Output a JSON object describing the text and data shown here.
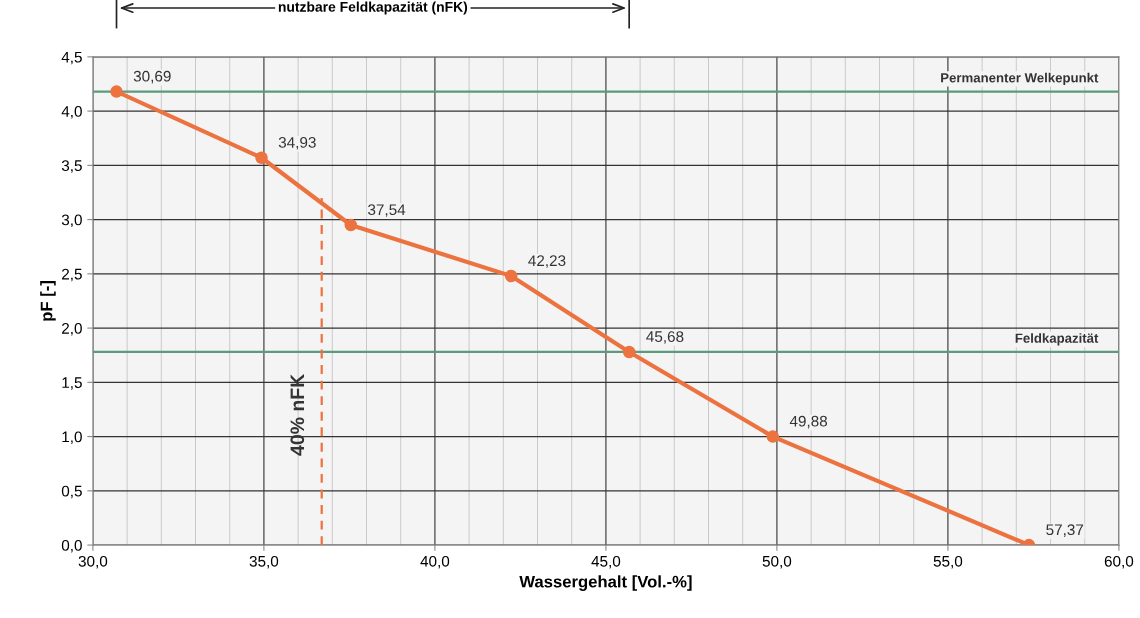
{
  "chart_data": {
    "type": "line",
    "xlabel": "Wassergehalt [Vol.-%]",
    "ylabel": "pF [-]",
    "xlim": [
      30,
      60
    ],
    "xticks": [
      {
        "value": 30,
        "label": "30,0"
      },
      {
        "value": 35,
        "label": "35,0"
      },
      {
        "value": 40,
        "label": "40,0"
      },
      {
        "value": 45,
        "label": "45,0"
      },
      {
        "value": 50,
        "label": "50,0"
      },
      {
        "value": 55,
        "label": "55,0"
      },
      {
        "value": 60,
        "label": "60,0"
      }
    ],
    "ylim": [
      0,
      4.5
    ],
    "yticks": [
      {
        "value": 0,
        "label": "0,0"
      },
      {
        "value": 0.5,
        "label": "0,5"
      },
      {
        "value": 1,
        "label": "1,0"
      },
      {
        "value": 1.5,
        "label": "1,5"
      },
      {
        "value": 2,
        "label": "2,0"
      },
      {
        "value": 2.5,
        "label": "2,5"
      },
      {
        "value": 3,
        "label": "3,0"
      },
      {
        "value": 3.5,
        "label": "3,5"
      },
      {
        "value": 4,
        "label": "4,0"
      },
      {
        "value": 4.5,
        "label": "4,5"
      }
    ],
    "grid": true,
    "legend": false,
    "marker": "circle",
    "line_style": "solid",
    "series": [
      {
        "color": "#ec7340",
        "x": [
          30.69,
          34.93,
          37.54,
          42.23,
          45.68,
          49.88,
          57.37
        ],
        "values": [
          4.18,
          3.57,
          2.95,
          2.48,
          1.78,
          1.0,
          0.0
        ]
      },
      {
        "color": "#ec7340",
        "x": [
          36.69,
          36.69
        ],
        "values": [
          0,
          3.2
        ],
        "marker": "none",
        "line_style": "dashed"
      }
    ],
    "ref_lines": [
      {
        "axis": "y",
        "value": 4.18,
        "label": "Permanenter Welkepunkt",
        "color": "#5b9a7c"
      },
      {
        "axis": "y",
        "value": 1.78,
        "label": "Feldkapazität",
        "color": "#5b9a7c"
      }
    ],
    "annotations": [
      {
        "text": "30,69",
        "x": 30.69,
        "y": 4.18
      },
      {
        "text": "34,93",
        "x": 34.93,
        "y": 3.57
      },
      {
        "text": "37,54",
        "x": 37.54,
        "y": 2.95
      },
      {
        "text": "42,23",
        "x": 42.23,
        "y": 2.48
      },
      {
        "text": "45,68",
        "x": 45.68,
        "y": 1.78
      },
      {
        "text": "49,88",
        "x": 49.88,
        "y": 1.0
      },
      {
        "text": "57,37",
        "x": 57.37,
        "y": 0.0
      },
      {
        "text": "40% nFK",
        "x": 36.69,
        "y": 1.2
      },
      "nutzbare Feldkapazität (nFK)"
    ]
  }
}
